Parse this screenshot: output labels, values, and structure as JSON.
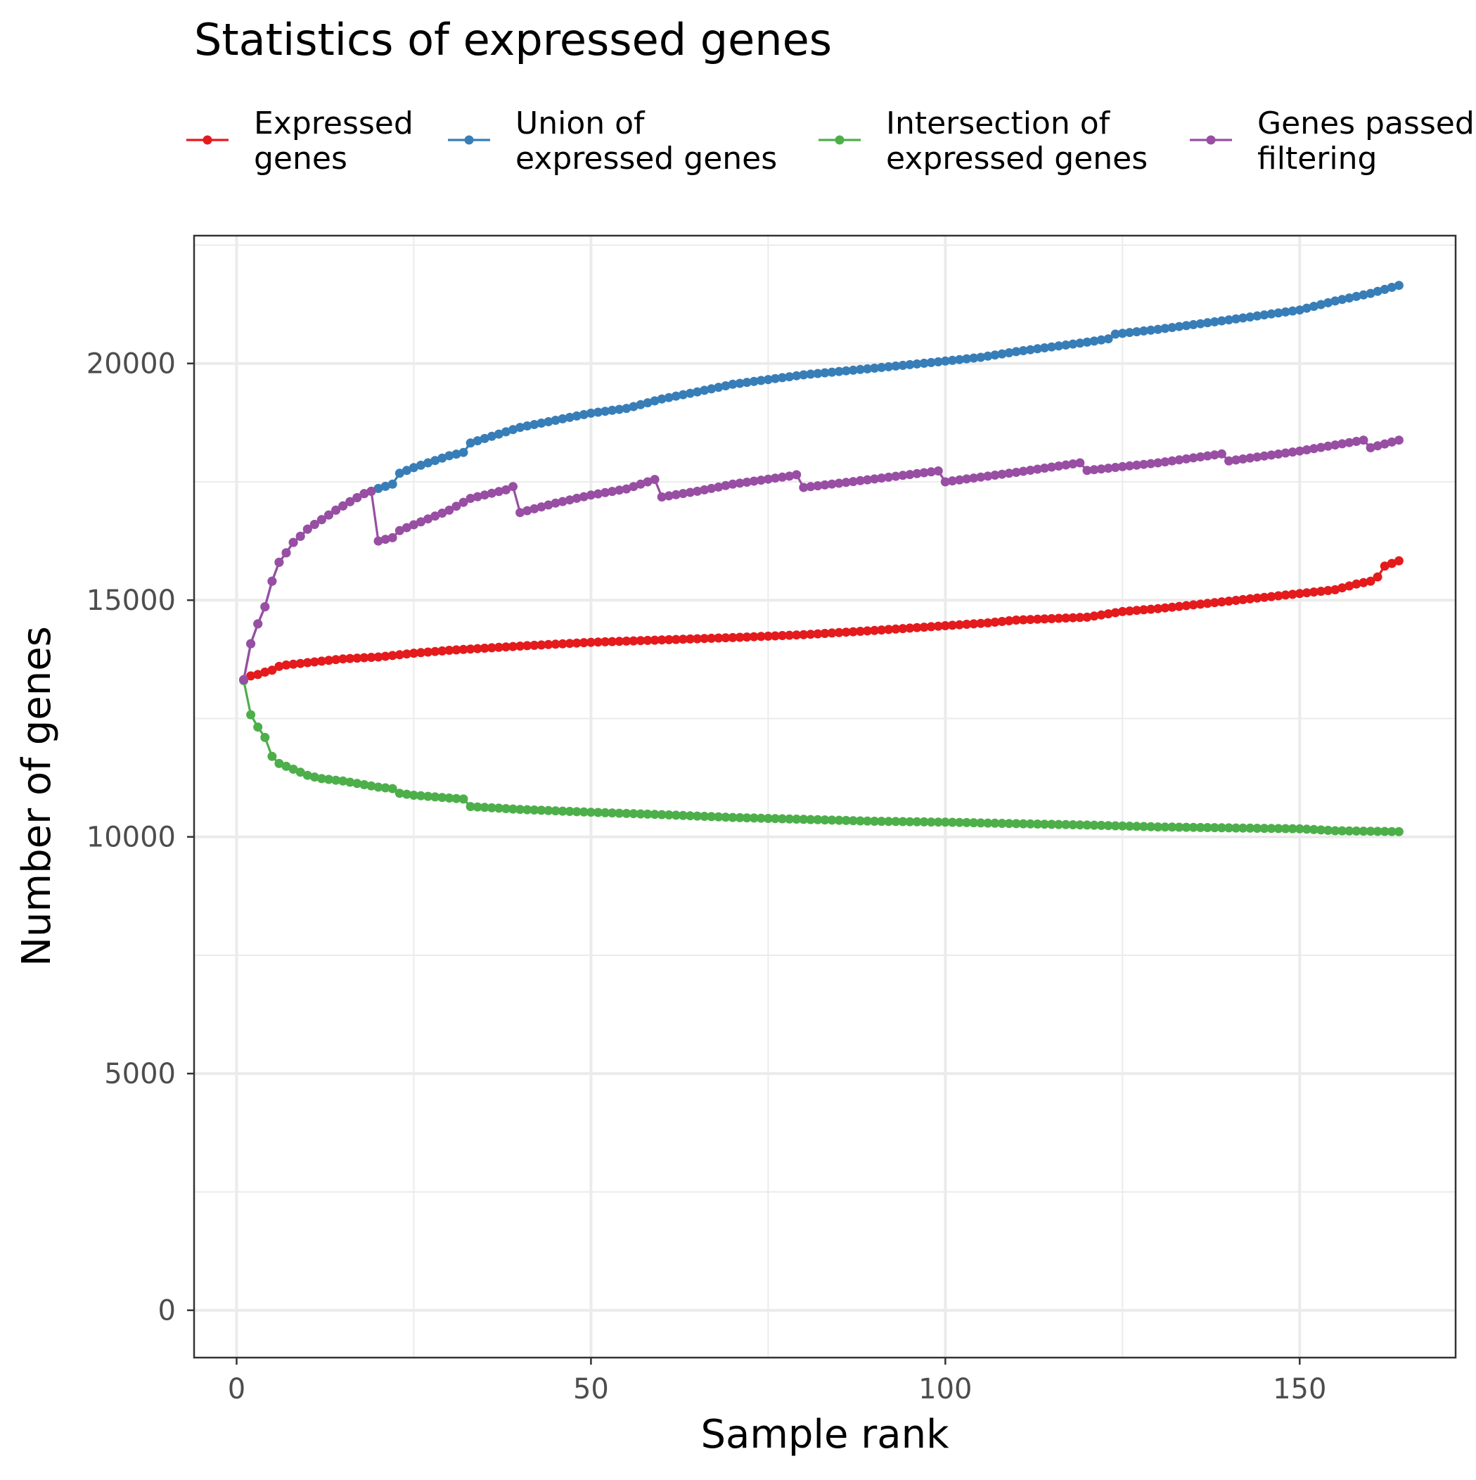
{
  "chart_data": {
    "type": "line",
    "title": "Statistics of expressed genes",
    "xlabel": "Sample rank",
    "ylabel": "Number of genes",
    "xlim": [
      -6,
      172
    ],
    "ylim": [
      -1000,
      22700
    ],
    "x_ticks": [
      0,
      50,
      100,
      150
    ],
    "y_ticks": [
      0,
      5000,
      10000,
      15000,
      20000
    ],
    "x_tick_labels": [
      "0",
      "50",
      "100",
      "150"
    ],
    "y_tick_labels": [
      "0",
      "5000",
      "10000",
      "15000",
      "20000"
    ],
    "grid": true,
    "legend_position": "top",
    "n_samples": 164,
    "series": [
      {
        "name": "Expressed\ngenes",
        "color": "#E41A1C",
        "knots": [
          [
            1,
            13320
          ],
          [
            2,
            13400
          ],
          [
            3,
            13430
          ],
          [
            4,
            13480
          ],
          [
            5,
            13520
          ],
          [
            6,
            13600
          ],
          [
            7,
            13630
          ],
          [
            10,
            13680
          ],
          [
            15,
            13760
          ],
          [
            20,
            13800
          ],
          [
            22,
            13830
          ],
          [
            25,
            13880
          ],
          [
            30,
            13940
          ],
          [
            40,
            14030
          ],
          [
            50,
            14110
          ],
          [
            60,
            14160
          ],
          [
            70,
            14210
          ],
          [
            80,
            14270
          ],
          [
            90,
            14360
          ],
          [
            100,
            14460
          ],
          [
            106,
            14520
          ],
          [
            110,
            14580
          ],
          [
            120,
            14640
          ],
          [
            125,
            14760
          ],
          [
            130,
            14820
          ],
          [
            140,
            14980
          ],
          [
            150,
            15140
          ],
          [
            155,
            15220
          ],
          [
            158,
            15340
          ],
          [
            160,
            15400
          ],
          [
            161,
            15490
          ],
          [
            162,
            15720
          ],
          [
            164,
            15830
          ]
        ]
      },
      {
        "name": "Union of\nexpressed genes",
        "color": "#377EB8",
        "knots": [
          [
            1,
            13320
          ],
          [
            2,
            14080
          ],
          [
            3,
            14500
          ],
          [
            4,
            14860
          ],
          [
            5,
            15400
          ],
          [
            6,
            15800
          ],
          [
            7,
            16000
          ],
          [
            8,
            16220
          ],
          [
            9,
            16350
          ],
          [
            10,
            16500
          ],
          [
            12,
            16700
          ],
          [
            14,
            16900
          ],
          [
            16,
            17080
          ],
          [
            18,
            17250
          ],
          [
            19,
            17300
          ],
          [
            20,
            17360
          ],
          [
            22,
            17450
          ],
          [
            23,
            17680
          ],
          [
            25,
            17800
          ],
          [
            30,
            18050
          ],
          [
            32,
            18120
          ],
          [
            33,
            18320
          ],
          [
            40,
            18650
          ],
          [
            50,
            18950
          ],
          [
            55,
            19050
          ],
          [
            60,
            19250
          ],
          [
            65,
            19400
          ],
          [
            70,
            19560
          ],
          [
            80,
            19760
          ],
          [
            90,
            19900
          ],
          [
            100,
            20050
          ],
          [
            105,
            20130
          ],
          [
            110,
            20250
          ],
          [
            120,
            20450
          ],
          [
            123,
            20520
          ],
          [
            124,
            20620
          ],
          [
            130,
            20720
          ],
          [
            140,
            20920
          ],
          [
            150,
            21130
          ],
          [
            155,
            21320
          ],
          [
            160,
            21480
          ],
          [
            164,
            21650
          ]
        ]
      },
      {
        "name": "Intersection of\nexpressed genes",
        "color": "#4DAF4A",
        "knots": [
          [
            1,
            13300
          ],
          [
            2,
            12580
          ],
          [
            3,
            12320
          ],
          [
            4,
            12100
          ],
          [
            5,
            11700
          ],
          [
            6,
            11550
          ],
          [
            7,
            11490
          ],
          [
            8,
            11430
          ],
          [
            10,
            11300
          ],
          [
            12,
            11230
          ],
          [
            15,
            11180
          ],
          [
            20,
            11050
          ],
          [
            22,
            11020
          ],
          [
            23,
            10920
          ],
          [
            25,
            10880
          ],
          [
            30,
            10820
          ],
          [
            32,
            10800
          ],
          [
            33,
            10640
          ],
          [
            40,
            10580
          ],
          [
            50,
            10520
          ],
          [
            60,
            10470
          ],
          [
            70,
            10410
          ],
          [
            80,
            10370
          ],
          [
            90,
            10330
          ],
          [
            100,
            10310
          ],
          [
            110,
            10280
          ],
          [
            120,
            10250
          ],
          [
            130,
            10210
          ],
          [
            140,
            10190
          ],
          [
            150,
            10170
          ],
          [
            155,
            10130
          ],
          [
            164,
            10110
          ]
        ]
      },
      {
        "name": "Genes passed\nfiltering",
        "color": "#984EA3",
        "knots": [
          [
            1,
            13320
          ],
          [
            2,
            14080
          ],
          [
            3,
            14500
          ],
          [
            4,
            14860
          ],
          [
            5,
            15400
          ],
          [
            6,
            15800
          ],
          [
            7,
            16000
          ],
          [
            8,
            16220
          ],
          [
            9,
            16350
          ],
          [
            10,
            16500
          ],
          [
            12,
            16700
          ],
          [
            14,
            16900
          ],
          [
            16,
            17080
          ],
          [
            18,
            17250
          ],
          [
            19,
            17300
          ],
          [
            20,
            16250
          ],
          [
            22,
            16320
          ],
          [
            23,
            16470
          ],
          [
            30,
            16900
          ],
          [
            33,
            17150
          ],
          [
            38,
            17330
          ],
          [
            39,
            17400
          ],
          [
            40,
            16850
          ],
          [
            45,
            17050
          ],
          [
            50,
            17220
          ],
          [
            55,
            17350
          ],
          [
            59,
            17550
          ],
          [
            60,
            17180
          ],
          [
            65,
            17300
          ],
          [
            70,
            17450
          ],
          [
            78,
            17620
          ],
          [
            79,
            17650
          ],
          [
            80,
            17380
          ],
          [
            90,
            17560
          ],
          [
            99,
            17730
          ],
          [
            100,
            17500
          ],
          [
            105,
            17600
          ],
          [
            110,
            17700
          ],
          [
            119,
            17900
          ],
          [
            120,
            17740
          ],
          [
            130,
            17900
          ],
          [
            139,
            18090
          ],
          [
            140,
            17940
          ],
          [
            150,
            18150
          ],
          [
            159,
            18380
          ],
          [
            160,
            18220
          ],
          [
            164,
            18380
          ]
        ]
      }
    ]
  }
}
